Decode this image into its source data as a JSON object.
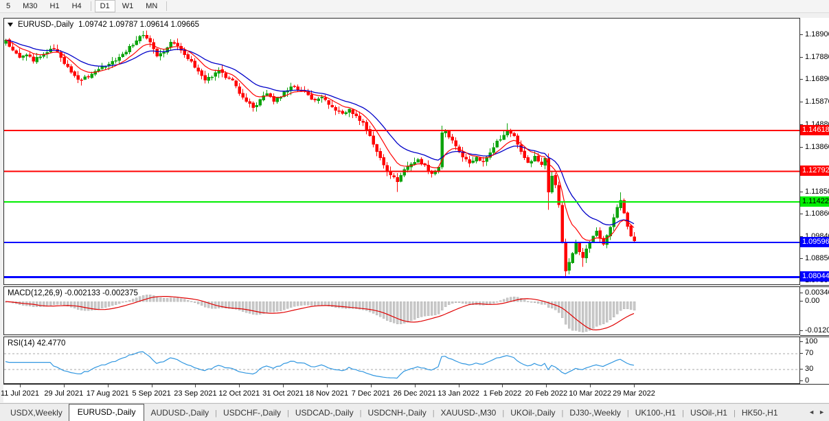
{
  "toolbar": {
    "timeframes": [
      {
        "label": "5",
        "active": false
      },
      {
        "label": "M30",
        "active": false
      },
      {
        "label": "H1",
        "active": false
      },
      {
        "label": "H4",
        "active": false
      },
      {
        "label": "D1",
        "active": true
      },
      {
        "label": "W1",
        "active": false
      },
      {
        "label": "MN",
        "active": false
      }
    ]
  },
  "price_panel": {
    "symbol_label": "EURUSD-,Daily",
    "ohlc_values": "1.09742 1.09787 1.09614 1.09665"
  },
  "macd_panel": {
    "label": "MACD(12,26,9) -0.002133 -0.002375",
    "scale_ticks": [
      "0.003408",
      "0.00",
      "-0.01205"
    ]
  },
  "rsi_panel": {
    "label": "RSI(14) 42.4770",
    "scale_ticks": [
      "100",
      "70",
      "30",
      "0"
    ]
  },
  "axis": {
    "price_ticks": [
      "1.18900",
      "1.17880",
      "1.16890",
      "1.15870",
      "1.14880",
      "1.13860",
      "1.11850",
      "1.10860",
      "1.09840",
      "1.08850",
      "1.07860"
    ]
  },
  "time_axis": {
    "dates": [
      "11 Jul 2021",
      "29 Jul 2021",
      "17 Aug 2021",
      "5 Sep 2021",
      "23 Sep 2021",
      "12 Oct 2021",
      "31 Oct 2021",
      "18 Nov 2021",
      "7 Dec 2021",
      "26 Dec 2021",
      "13 Jan 2022",
      "1 Feb 2022",
      "20 Feb 2022",
      "10 Mar 2022",
      "29 Mar 2022"
    ]
  },
  "tabbar": {
    "tabs": [
      {
        "label": "USDX,Weekly",
        "active": false
      },
      {
        "label": "EURUSD-,Daily",
        "active": true
      },
      {
        "label": "AUDUSD-,Daily",
        "active": false
      },
      {
        "label": "USDCHF-,Daily",
        "active": false
      },
      {
        "label": "USDCAD-,Daily",
        "active": false
      },
      {
        "label": "USDCNH-,Daily",
        "active": false
      },
      {
        "label": "XAUUSD-,M30",
        "active": false
      },
      {
        "label": "UKOil-,Daily",
        "active": false
      },
      {
        "label": "DJ30-,Weekly",
        "active": false
      },
      {
        "label": "UK100-,H1",
        "active": false
      },
      {
        "label": "USOil-,H1",
        "active": false
      },
      {
        "label": "HK50-,H1",
        "active": false
      }
    ],
    "scroll_left_icon": "◄",
    "scroll_right_icon": "►"
  },
  "colors": {
    "bull": "#0CA30C",
    "bear": "#FF0000",
    "ma_fast": "#FF0000",
    "ma_slow": "#0000C8",
    "macd_hist": "#C9C9C9",
    "macd_signal": "#E00000",
    "rsi_line": "#2F96E0",
    "rsi_levels": "#A8A8A8"
  },
  "chart_data": [
    {
      "type": "candlestick",
      "title": "EURUSD-,Daily",
      "ohlc_display": {
        "open": "1.09742",
        "high": "1.09787",
        "low": "1.09614",
        "close": "1.09665"
      },
      "bar_count": 184,
      "price_top": 1.19639,
      "price_bottom": 1.07659,
      "ma_fast_period": 9,
      "ma_slow_period": 20,
      "horizontal_lines": [
        {
          "label": "1.14618",
          "price": 1.14618,
          "color": "#FF0000",
          "width": 2,
          "badge_fg": "#FFFFFF"
        },
        {
          "label": "1.12792",
          "price": 1.12792,
          "color": "#FF0000",
          "width": 2,
          "badge_fg": "#FFFFFF"
        },
        {
          "label": "1.11422",
          "price": 1.11422,
          "color": "#00EE00",
          "width": 2,
          "badge_fg": "#000000"
        },
        {
          "label": "1.09596",
          "price": 1.09596,
          "color": "#0000FF",
          "width": 2,
          "badge_fg": "#FFFFFF"
        },
        {
          "label": "1.08044",
          "price": 1.08044,
          "color": "#0000FF",
          "width": 3,
          "badge_fg": "#FFFFFF"
        }
      ],
      "close_anchors": [
        [
          0,
          1.1868
        ],
        [
          2,
          1.1822
        ],
        [
          4,
          1.179
        ],
        [
          6,
          1.1802
        ],
        [
          8,
          1.1772
        ],
        [
          10,
          1.1792
        ],
        [
          12,
          1.1812
        ],
        [
          14,
          1.1828
        ],
        [
          16,
          1.179
        ],
        [
          18,
          1.1748
        ],
        [
          20,
          1.1708
        ],
        [
          22,
          1.1688
        ],
        [
          25,
          1.1715
        ],
        [
          28,
          1.1748
        ],
        [
          31,
          1.1772
        ],
        [
          34,
          1.1805
        ],
        [
          36,
          1.184
        ],
        [
          38,
          1.1865
        ],
        [
          40,
          1.189
        ],
        [
          42,
          1.1858
        ],
        [
          44,
          1.1795
        ],
        [
          46,
          1.1812
        ],
        [
          48,
          1.1858
        ],
        [
          50,
          1.1842
        ],
        [
          52,
          1.1802
        ],
        [
          54,
          1.1772
        ],
        [
          56,
          1.1728
        ],
        [
          58,
          1.1688
        ],
        [
          60,
          1.1702
        ],
        [
          62,
          1.1732
        ],
        [
          64,
          1.1698
        ],
        [
          66,
          1.1688
        ],
        [
          68,
          1.1628
        ],
        [
          70,
          1.1592
        ],
        [
          72,
          1.1565
        ],
        [
          74,
          1.1602
        ],
        [
          76,
          1.1628
        ],
        [
          78,
          1.1592
        ],
        [
          80,
          1.1612
        ],
        [
          82,
          1.1642
        ],
        [
          84,
          1.1658
        ],
        [
          86,
          1.1642
        ],
        [
          88,
          1.1622
        ],
        [
          90,
          1.1598
        ],
        [
          92,
          1.1612
        ],
        [
          94,
          1.1578
        ],
        [
          96,
          1.1552
        ],
        [
          98,
          1.1538
        ],
        [
          100,
          1.1558
        ],
        [
          102,
          1.1528
        ],
        [
          104,
          1.1498
        ],
        [
          106,
          1.1438
        ],
        [
          108,
          1.1368
        ],
        [
          110,
          1.1308
        ],
        [
          112,
          1.1262
        ],
        [
          114,
          1.1232
        ],
        [
          116,
          1.1288
        ],
        [
          118,
          1.1312
        ],
        [
          120,
          1.1332
        ],
        [
          122,
          1.1308
        ],
        [
          124,
          1.1268
        ],
        [
          126,
          1.1298
        ],
        [
          127,
          1.1452
        ],
        [
          128,
          1.1462
        ],
        [
          129,
          1.1432
        ],
        [
          131,
          1.1392
        ],
        [
          133,
          1.1342
        ],
        [
          135,
          1.1315
        ],
        [
          137,
          1.1342
        ],
        [
          139,
          1.1322
        ],
        [
          141,
          1.1362
        ],
        [
          143,
          1.1415
        ],
        [
          145,
          1.1442
        ],
        [
          146,
          1.1458
        ],
        [
          148,
          1.1438
        ],
        [
          150,
          1.1368
        ],
        [
          152,
          1.1318
        ],
        [
          154,
          1.1348
        ],
        [
          156,
          1.1308
        ],
        [
          157,
          1.1338
        ],
        [
          158,
          1.1186
        ],
        [
          159,
          1.1258
        ],
        [
          160,
          1.1218
        ],
        [
          161,
          1.1128
        ],
        [
          162,
          1.0958
        ],
        [
          163,
          1.0832
        ],
        [
          164,
          1.0872
        ],
        [
          165,
          1.0912
        ],
        [
          166,
          1.0962
        ],
        [
          167,
          1.0918
        ],
        [
          168,
          1.0892
        ],
        [
          169,
          1.0932
        ],
        [
          170,
          1.0958
        ],
        [
          171,
          1.0988
        ],
        [
          172,
          1.1012
        ],
        [
          173,
          1.0978
        ],
        [
          174,
          1.0952
        ],
        [
          175,
          1.0992
        ],
        [
          176,
          1.1028
        ],
        [
          177,
          1.1072
        ],
        [
          178,
          1.1118
        ],
        [
          179,
          1.1148
        ],
        [
          180,
          1.1092
        ],
        [
          181,
          1.1032
        ],
        [
          182,
          1.0988
        ],
        [
          183,
          1.09665
        ]
      ],
      "high_overrides": {
        "40": 1.1908,
        "127": 1.1484,
        "146": 1.1495,
        "179": 1.1184
      },
      "low_overrides": {
        "22": 1.1664,
        "72": 1.156,
        "114": 1.1186,
        "158": 1.1106,
        "163": 1.0806,
        "168": 1.085
      }
    },
    {
      "type": "macd-histogram",
      "label": "MACD(12,26,9) -0.002133 -0.002375",
      "fast": 12,
      "slow": 26,
      "signal": 9,
      "current_main": -0.002133,
      "current_signal": -0.002375,
      "scale_max": 0.003408,
      "scale_min": -0.01205
    },
    {
      "type": "rsi-line",
      "label": "RSI(14) 42.4770",
      "period": 14,
      "current": 42.477,
      "levels": [
        70,
        30
      ],
      "scale": [
        100,
        70,
        30,
        0
      ]
    }
  ]
}
